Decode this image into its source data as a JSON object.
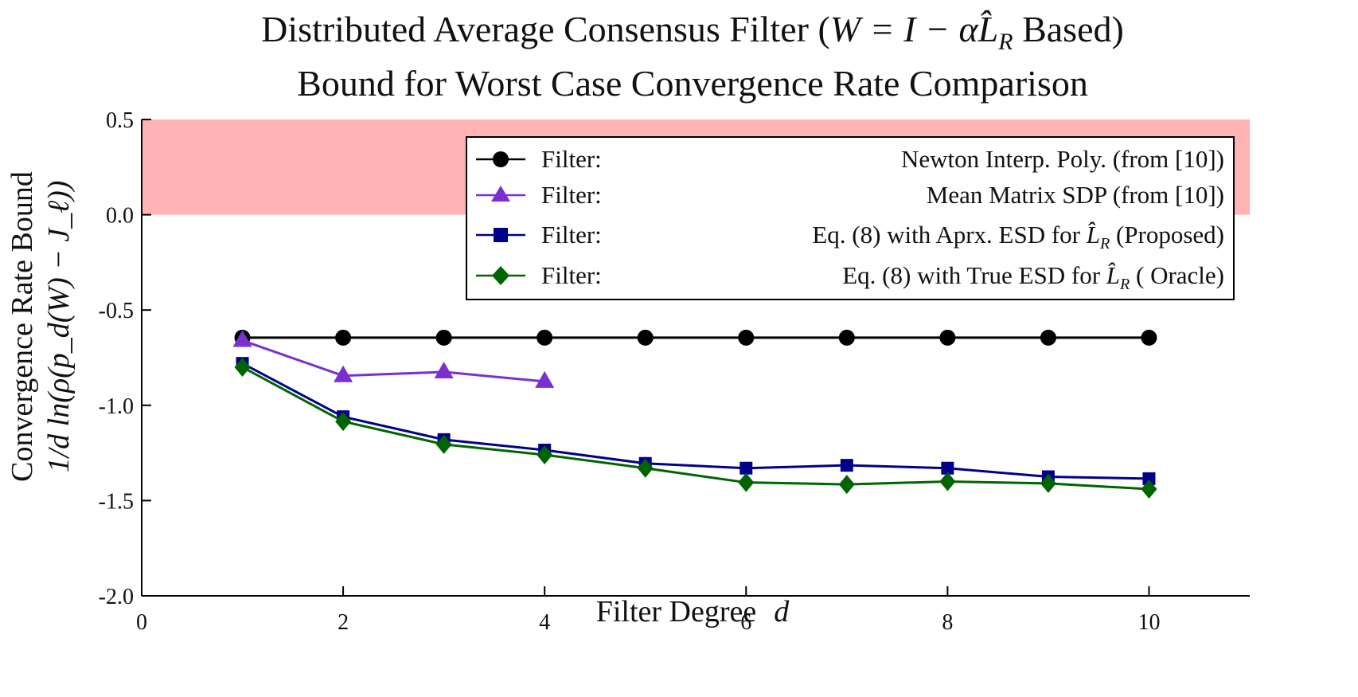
{
  "chart_data": {
    "type": "line",
    "title_line1_prefix": "Distributed Average Consensus Filter (",
    "title_math": "W = I − αL̂",
    "title_math_sub": "R",
    "title_line1_suffix": " Based)",
    "title_line2": "Bound for Worst Case Convergence Rate Comparison",
    "xlabel_text": "Filter Degree",
    "xlabel_var": "d",
    "ylabel_line1": "Convergence Rate Bound",
    "ylabel_line2": "1/d  ln(ρ(p_d(W) − J_ℓ))",
    "xlim": [
      0,
      11
    ],
    "ylim": [
      -2.0,
      0.5
    ],
    "x_ticks": [
      0,
      2,
      4,
      6,
      8,
      10
    ],
    "x_tick_labels": [
      "0",
      "2",
      "4",
      "6",
      "8",
      "10"
    ],
    "y_ticks": [
      -2.0,
      -1.5,
      -1.0,
      -0.5,
      0.0,
      0.5
    ],
    "y_tick_labels": [
      "-2.0",
      "-1.5",
      "-1.0",
      "-0.5",
      "0.0",
      "0.5"
    ],
    "shaded_region": {
      "y_from": 0.0,
      "y_to": 0.5,
      "color": "#ffb3b3"
    },
    "series": [
      {
        "name": "Newton Interp. Poly.",
        "legend_prefix": "Filter:",
        "legend_text": "Newton Interp. Poly. (from [10])",
        "color": "#000000",
        "marker": "circle",
        "x": [
          1,
          2,
          3,
          4,
          5,
          6,
          7,
          8,
          9,
          10
        ],
        "values": [
          -0.645,
          -0.645,
          -0.645,
          -0.645,
          -0.645,
          -0.645,
          -0.645,
          -0.645,
          -0.645,
          -0.645
        ]
      },
      {
        "name": "Mean Matrix SDP",
        "legend_prefix": "Filter:",
        "legend_text": "Mean Matrix SDP (from [10])",
        "color": "#7b2fd0",
        "marker": "triangle",
        "x": [
          1,
          2,
          3,
          4
        ],
        "values": [
          -0.66,
          -0.845,
          -0.825,
          -0.875
        ]
      },
      {
        "name": "Aprx. ESD (Proposed)",
        "legend_prefix": "Filter:",
        "legend_text_a": "Eq. (8) with Aprx. ESD for ",
        "legend_math": "L̂",
        "legend_math_sub": "R",
        "legend_text_b": " (Proposed)",
        "color": "#00008b",
        "marker": "square",
        "x": [
          1,
          2,
          3,
          4,
          5,
          6,
          7,
          8,
          9,
          10
        ],
        "values": [
          -0.78,
          -1.06,
          -1.18,
          -1.235,
          -1.305,
          -1.33,
          -1.315,
          -1.33,
          -1.375,
          -1.385
        ]
      },
      {
        "name": "True ESD (Oracle)",
        "legend_prefix": "Filter:",
        "legend_text_a": "Eq. (8) with  True ESD for ",
        "legend_math": "L̂",
        "legend_math_sub": "R",
        "legend_text_b": " (    Oracle)",
        "color": "#006400",
        "marker": "diamond",
        "x": [
          1,
          2,
          3,
          4,
          5,
          6,
          7,
          8,
          9,
          10
        ],
        "values": [
          -0.8,
          -1.085,
          -1.205,
          -1.26,
          -1.33,
          -1.405,
          -1.415,
          -1.4,
          -1.41,
          -1.44
        ]
      }
    ],
    "legend_position": "top-right"
  }
}
